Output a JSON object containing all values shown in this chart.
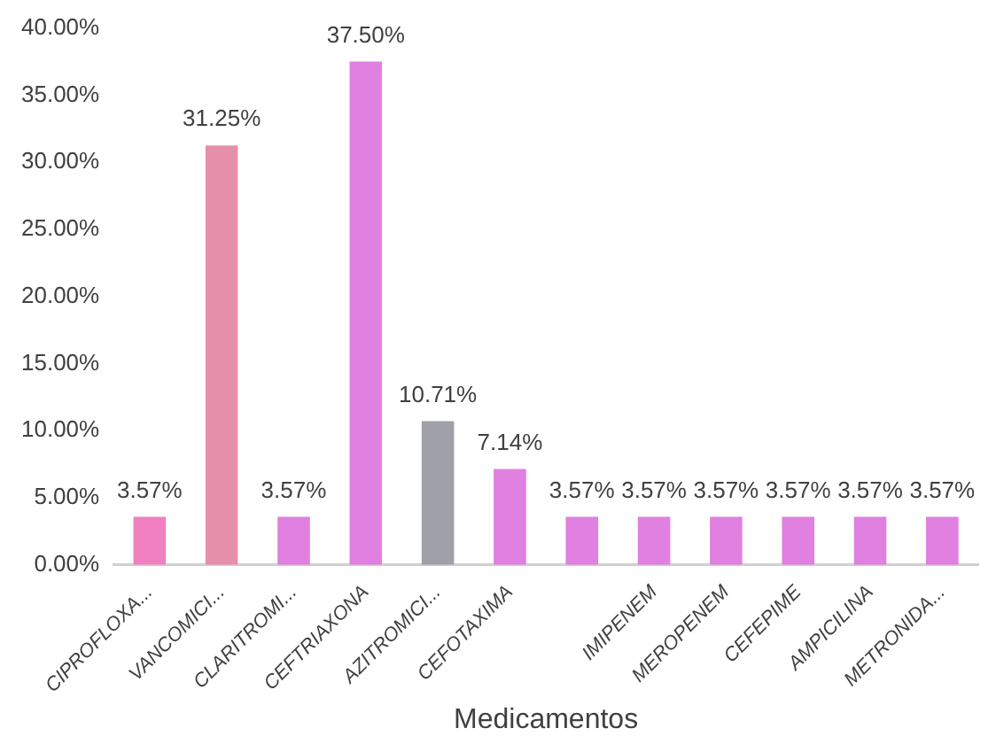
{
  "chart_data": {
    "type": "bar",
    "xlabel": "Medicamentos",
    "categories": [
      "CIPROFLOXA...",
      "VANCOMICI...",
      "CLARITROMI...",
      "CEFTRIAXONA",
      "AZITROMICI...",
      "CEFOTAXIMA",
      null,
      "IMIPENEM",
      "MEROPENEM",
      "CEFEPIME",
      "AMPICILINA",
      "METRONIDA..."
    ],
    "values": [
      3.57,
      31.25,
      3.57,
      37.5,
      10.71,
      7.14,
      3.57,
      3.57,
      3.57,
      3.57,
      3.57,
      3.57
    ],
    "colors": [
      "#f080c0",
      "#e68fab",
      "#e080e0",
      "#e080e0",
      "#a0a0a8",
      "#e080e0",
      "#e080e0",
      "#e080e0",
      "#e080e0",
      "#e080e0",
      "#e080e0",
      "#e080e0"
    ],
    "value_labels": [
      "3.57%",
      "31.25%",
      "3.57%",
      "37.50%",
      "10.71%",
      "7.14%",
      "3.57%",
      "3.57%",
      "3.57%",
      "3.57%",
      "3.57%",
      "3.57%"
    ],
    "ylim": [
      0,
      40
    ],
    "yticks": [
      {
        "value": 0,
        "label": "0.00%"
      },
      {
        "value": 5,
        "label": "5.00%"
      },
      {
        "value": 10,
        "label": "10.00%"
      },
      {
        "value": 15,
        "label": "15.00%"
      },
      {
        "value": 20,
        "label": "20.00%"
      },
      {
        "value": 25,
        "label": "25.00%"
      },
      {
        "value": 30,
        "label": "30.00%"
      },
      {
        "value": 35,
        "label": "35.00%"
      },
      {
        "value": 40,
        "label": "40.00%"
      }
    ],
    "grid": false,
    "legend": false
  }
}
